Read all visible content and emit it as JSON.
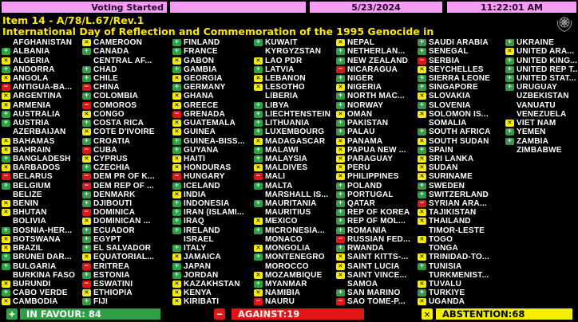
{
  "header": {
    "status": "Voting Started",
    "date": "5/23/2024",
    "time": "11:22:01 AM"
  },
  "title": {
    "line1": "Item 14 - A/78/L.67/Rev.1",
    "line2": "International Day of Reflection and Commemoration of the 1995 Genocide in"
  },
  "icons": {
    "un_emblem": "un-emblem",
    "vote_yes": "plus-icon",
    "vote_no": "minus-icon",
    "vote_abstain": "x-icon"
  },
  "vote_glyphs": {
    "Y": "+",
    "N": "−",
    "A": "✕"
  },
  "colors": {
    "green": "#2ea043",
    "red": "#e31414",
    "yellow": "#f6ee00",
    "pink": "#f49bf4",
    "title_yellow": "#ffe800"
  },
  "footer": {
    "in_favour": "IN FAVOUR: 84",
    "against": "AGAINST:19",
    "abstention": "ABSTENTION:68"
  },
  "columns": [
    [
      {
        "n": "AFGHANISTAN",
        "v": ""
      },
      {
        "n": "ALBANIA",
        "v": "Y"
      },
      {
        "n": "ALGERIA",
        "v": "A"
      },
      {
        "n": "ANDORRA",
        "v": "Y"
      },
      {
        "n": "ANGOLA",
        "v": "A"
      },
      {
        "n": "ANTIGUA-BA...",
        "v": "N"
      },
      {
        "n": "ARGENTINA",
        "v": "A"
      },
      {
        "n": "ARMENIA",
        "v": "A"
      },
      {
        "n": "AUSTRALIA",
        "v": "Y"
      },
      {
        "n": "AUSTRIA",
        "v": "Y"
      },
      {
        "n": "AZERBAIJAN",
        "v": ""
      },
      {
        "n": "BAHAMAS",
        "v": "A"
      },
      {
        "n": "BAHRAIN",
        "v": "A"
      },
      {
        "n": "BANGLADESH",
        "v": "Y"
      },
      {
        "n": "BARBADOS",
        "v": "A"
      },
      {
        "n": "BELARUS",
        "v": "N"
      },
      {
        "n": "BELGIUM",
        "v": "Y"
      },
      {
        "n": "BELIZE",
        "v": ""
      },
      {
        "n": "BENIN",
        "v": "A"
      },
      {
        "n": "BHUTAN",
        "v": "A"
      },
      {
        "n": "BOLIVIA",
        "v": ""
      },
      {
        "n": "BOSNIA-HER...",
        "v": "Y"
      },
      {
        "n": "BOTSWANA",
        "v": "A"
      },
      {
        "n": "BRAZIL",
        "v": "A"
      },
      {
        "n": "BRUNEI DAR...",
        "v": "Y"
      },
      {
        "n": "BULGARIA",
        "v": "Y"
      },
      {
        "n": "BURKINA FASO",
        "v": ""
      },
      {
        "n": "BURUNDI",
        "v": "A"
      },
      {
        "n": "CABO VERDE",
        "v": "Y"
      },
      {
        "n": "CAMBODIA",
        "v": "A"
      }
    ],
    [
      {
        "n": "CAMEROON",
        "v": "A"
      },
      {
        "n": "CANADA",
        "v": "Y"
      },
      {
        "n": "CENTRAL AF...",
        "v": ""
      },
      {
        "n": "CHAD",
        "v": "Y"
      },
      {
        "n": "CHILE",
        "v": "Y"
      },
      {
        "n": "CHINA",
        "v": "N"
      },
      {
        "n": "COLOMBIA",
        "v": "Y"
      },
      {
        "n": "COMOROS",
        "v": "N"
      },
      {
        "n": "CONGO",
        "v": "A"
      },
      {
        "n": "COSTA RICA",
        "v": "Y"
      },
      {
        "n": "COTE D'IVOIRE",
        "v": "A"
      },
      {
        "n": "CROATIA",
        "v": "Y"
      },
      {
        "n": "CUBA",
        "v": "N"
      },
      {
        "n": "CYPRUS",
        "v": "A"
      },
      {
        "n": "CZECHIA",
        "v": "Y"
      },
      {
        "n": "DEM PR OF K...",
        "v": "N"
      },
      {
        "n": "DEM REP OF ...",
        "v": "N"
      },
      {
        "n": "DENMARK",
        "v": "Y"
      },
      {
        "n": "DJIBOUTI",
        "v": "Y"
      },
      {
        "n": "DOMINICA",
        "v": "N"
      },
      {
        "n": "DOMINICAN ...",
        "v": "A"
      },
      {
        "n": "ECUADOR",
        "v": "Y"
      },
      {
        "n": "EGYPT",
        "v": "Y"
      },
      {
        "n": "EL SALVADOR",
        "v": "Y"
      },
      {
        "n": "EQUATORIAL...",
        "v": "A"
      },
      {
        "n": "ERITREA",
        "v": "N"
      },
      {
        "n": "ESTONIA",
        "v": "Y"
      },
      {
        "n": "ESWATINI",
        "v": "N"
      },
      {
        "n": "ETHIOPIA",
        "v": "A"
      },
      {
        "n": "FIJI",
        "v": "Y"
      }
    ],
    [
      {
        "n": "FINLAND",
        "v": "Y"
      },
      {
        "n": "FRANCE",
        "v": "Y"
      },
      {
        "n": "GABON",
        "v": "A"
      },
      {
        "n": "GAMBIA",
        "v": "Y"
      },
      {
        "n": "GEORGIA",
        "v": "A"
      },
      {
        "n": "GERMANY",
        "v": "Y"
      },
      {
        "n": "GHANA",
        "v": "A"
      },
      {
        "n": "GREECE",
        "v": "A"
      },
      {
        "n": "GRENADA",
        "v": "N"
      },
      {
        "n": "GUATEMALA",
        "v": "A"
      },
      {
        "n": "GUINEA",
        "v": "A"
      },
      {
        "n": "GUINEA-BISS...",
        "v": "Y"
      },
      {
        "n": "GUYANA",
        "v": "Y"
      },
      {
        "n": "HAITI",
        "v": "A"
      },
      {
        "n": "HONDURAS",
        "v": "A"
      },
      {
        "n": "HUNGARY",
        "v": "N"
      },
      {
        "n": "ICELAND",
        "v": "Y"
      },
      {
        "n": "INDIA",
        "v": "A"
      },
      {
        "n": "INDONESIA",
        "v": "Y"
      },
      {
        "n": "IRAN (ISLAMI...",
        "v": "Y"
      },
      {
        "n": "IRAQ",
        "v": "Y"
      },
      {
        "n": "IRELAND",
        "v": "Y"
      },
      {
        "n": "ISRAEL",
        "v": ""
      },
      {
        "n": "ITALY",
        "v": "Y"
      },
      {
        "n": "JAMAICA",
        "v": "A"
      },
      {
        "n": "JAPAN",
        "v": "Y"
      },
      {
        "n": "JORDAN",
        "v": "Y"
      },
      {
        "n": "KAZAKHSTAN",
        "v": "A"
      },
      {
        "n": "KENYA",
        "v": "A"
      },
      {
        "n": "KIRIBATI",
        "v": "A"
      }
    ],
    [
      {
        "n": "KUWAIT",
        "v": "Y"
      },
      {
        "n": "KYRGYZSTAN",
        "v": ""
      },
      {
        "n": "LAO PDR",
        "v": "A"
      },
      {
        "n": "LATVIA",
        "v": "Y"
      },
      {
        "n": "LEBANON",
        "v": "A"
      },
      {
        "n": "LESOTHO",
        "v": "A"
      },
      {
        "n": "LIBERIA",
        "v": ""
      },
      {
        "n": "LIBYA",
        "v": "Y"
      },
      {
        "n": "LIECHTENSTEIN",
        "v": "Y"
      },
      {
        "n": "LITHUANIA",
        "v": "Y"
      },
      {
        "n": "LUXEMBOURG",
        "v": "Y"
      },
      {
        "n": "MADAGASCAR",
        "v": "A"
      },
      {
        "n": "MALAWI",
        "v": "Y"
      },
      {
        "n": "MALAYSIA",
        "v": "Y"
      },
      {
        "n": "MALDIVES",
        "v": "A"
      },
      {
        "n": "MALI",
        "v": "N"
      },
      {
        "n": "MALTA",
        "v": "Y"
      },
      {
        "n": "MARSHALL IS...",
        "v": ""
      },
      {
        "n": "MAURITANIA",
        "v": "Y"
      },
      {
        "n": "MAURITIUS",
        "v": ""
      },
      {
        "n": "MEXICO",
        "v": "A"
      },
      {
        "n": "MICRONESIA...",
        "v": "Y"
      },
      {
        "n": "MONACO",
        "v": ""
      },
      {
        "n": "MONGOLIA",
        "v": "A"
      },
      {
        "n": "MONTENEGRO",
        "v": "Y"
      },
      {
        "n": "MOROCCO",
        "v": ""
      },
      {
        "n": "MOZAMBIQUE",
        "v": "A"
      },
      {
        "n": "MYANMAR",
        "v": "Y"
      },
      {
        "n": "NAMIBIA",
        "v": "A"
      },
      {
        "n": "NAURU",
        "v": "N"
      }
    ],
    [
      {
        "n": "NEPAL",
        "v": "A"
      },
      {
        "n": "NETHERLAN...",
        "v": "Y"
      },
      {
        "n": "NEW ZEALAND",
        "v": "Y"
      },
      {
        "n": "NICARAGUA",
        "v": "N"
      },
      {
        "n": "NIGER",
        "v": "Y"
      },
      {
        "n": "NIGERIA",
        "v": "A"
      },
      {
        "n": "NORTH MAC...",
        "v": "Y"
      },
      {
        "n": "NORWAY",
        "v": "Y"
      },
      {
        "n": "OMAN",
        "v": "A"
      },
      {
        "n": "PAKISTAN",
        "v": "Y"
      },
      {
        "n": "PALAU",
        "v": "Y"
      },
      {
        "n": "PANAMA",
        "v": "A"
      },
      {
        "n": "PAPUA NEW ...",
        "v": "A"
      },
      {
        "n": "PARAGUAY",
        "v": "A"
      },
      {
        "n": "PERU",
        "v": "A"
      },
      {
        "n": "PHILIPPINES",
        "v": "A"
      },
      {
        "n": "POLAND",
        "v": "Y"
      },
      {
        "n": "PORTUGAL",
        "v": "Y"
      },
      {
        "n": "QATAR",
        "v": "Y"
      },
      {
        "n": "REP OF KOREA",
        "v": "Y"
      },
      {
        "n": "REP OF MOL...",
        "v": "Y"
      },
      {
        "n": "ROMANIA",
        "v": "Y"
      },
      {
        "n": "RUSSIAN FED...",
        "v": "N"
      },
      {
        "n": "RWANDA",
        "v": "Y"
      },
      {
        "n": "SAINT KITTS-...",
        "v": "A"
      },
      {
        "n": "SAINT LUCIA",
        "v": "A"
      },
      {
        "n": "SAINT VINCE...",
        "v": "A"
      },
      {
        "n": "SAMOA",
        "v": ""
      },
      {
        "n": "SAN MARINO",
        "v": "Y"
      },
      {
        "n": "SAO TOME-P...",
        "v": "N"
      }
    ],
    [
      {
        "n": "SAUDI ARABIA",
        "v": "Y"
      },
      {
        "n": "SENEGAL",
        "v": "Y"
      },
      {
        "n": "SERBIA",
        "v": "N"
      },
      {
        "n": "SEYCHELLES",
        "v": "A"
      },
      {
        "n": "SIERRA LEONE",
        "v": "Y"
      },
      {
        "n": "SINGAPORE",
        "v": "Y"
      },
      {
        "n": "SLOVAKIA",
        "v": "A"
      },
      {
        "n": "SLOVENIA",
        "v": "Y"
      },
      {
        "n": "SOLOMON IS...",
        "v": "A"
      },
      {
        "n": "SOMALIA",
        "v": ""
      },
      {
        "n": "SOUTH AFRICA",
        "v": "Y"
      },
      {
        "n": "SOUTH SUDAN",
        "v": "A"
      },
      {
        "n": "SPAIN",
        "v": "Y"
      },
      {
        "n": "SRI LANKA",
        "v": "A"
      },
      {
        "n": "SUDAN",
        "v": "A"
      },
      {
        "n": "SURINAME",
        "v": "A"
      },
      {
        "n": "SWEDEN",
        "v": "Y"
      },
      {
        "n": "SWITZERLAND",
        "v": "Y"
      },
      {
        "n": "SYRIAN ARA...",
        "v": "N"
      },
      {
        "n": "TAJIKISTAN",
        "v": "A"
      },
      {
        "n": "THAILAND",
        "v": "A"
      },
      {
        "n": "TIMOR-LESTE",
        "v": ""
      },
      {
        "n": "TOGO",
        "v": "A"
      },
      {
        "n": "TONGA",
        "v": ""
      },
      {
        "n": "TRINIDAD-TO...",
        "v": "A"
      },
      {
        "n": "TUNISIA",
        "v": "Y"
      },
      {
        "n": "TURKMENIST...",
        "v": ""
      },
      {
        "n": "TUVALU",
        "v": "A"
      },
      {
        "n": "TÜRKIYE",
        "v": "Y"
      },
      {
        "n": "UGANDA",
        "v": "A"
      }
    ],
    [
      {
        "n": "UKRAINE",
        "v": "Y"
      },
      {
        "n": "UNITED ARA...",
        "v": "A"
      },
      {
        "n": "UNITED KING...",
        "v": "Y"
      },
      {
        "n": "UNITED REP T...",
        "v": "Y"
      },
      {
        "n": "UNITED STAT...",
        "v": "Y"
      },
      {
        "n": "URUGUAY",
        "v": "Y"
      },
      {
        "n": "UZBEKISTAN",
        "v": ""
      },
      {
        "n": "VANUATU",
        "v": ""
      },
      {
        "n": "VENEZUELA",
        "v": ""
      },
      {
        "n": "VIET NAM",
        "v": "A"
      },
      {
        "n": "YEMEN",
        "v": "Y"
      },
      {
        "n": "ZAMBIA",
        "v": "Y"
      },
      {
        "n": "ZIMBABWE",
        "v": ""
      }
    ]
  ]
}
